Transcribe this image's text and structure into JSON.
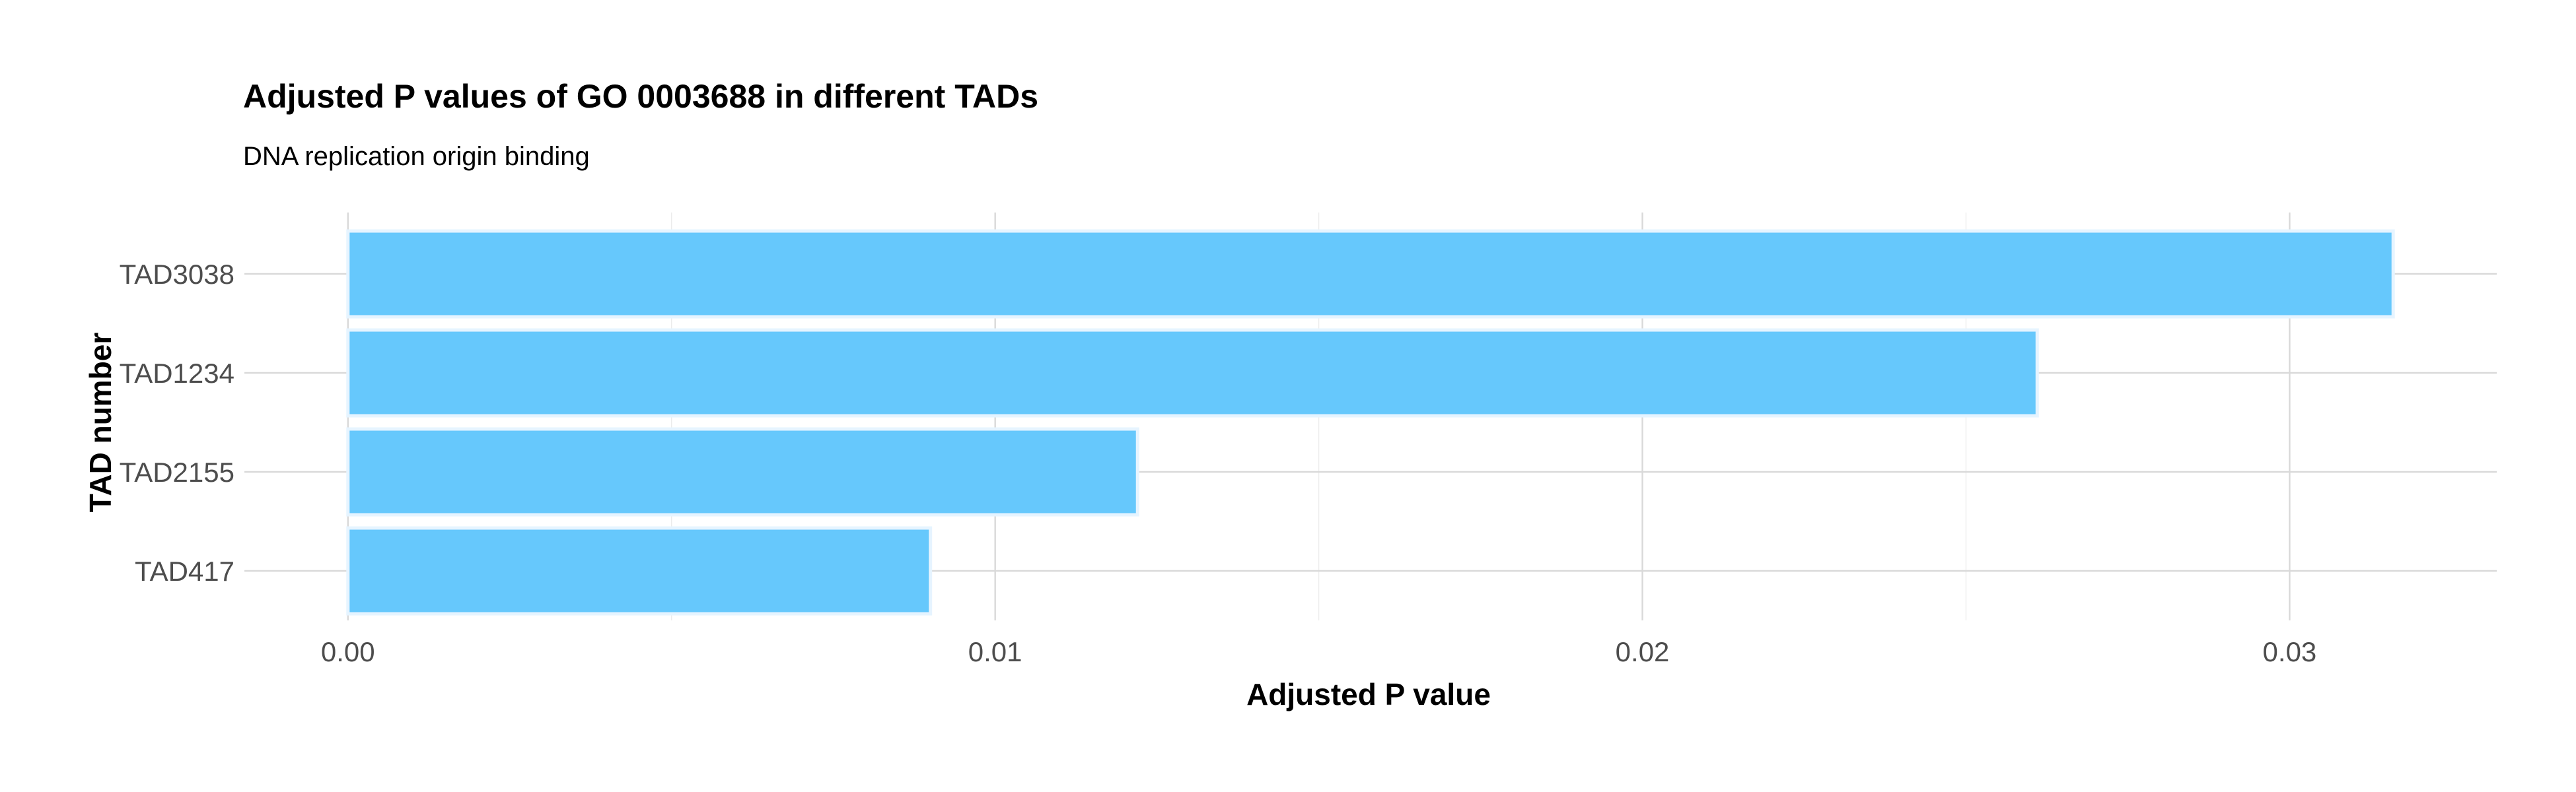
{
  "chart_data": {
    "type": "bar",
    "orientation": "horizontal",
    "title": "Adjusted P values of GO 0003688 in different TADs",
    "subtitle": "DNA replication origin binding",
    "xlabel": "Adjusted P value",
    "ylabel": "TAD number",
    "categories": [
      "TAD3038",
      "TAD1234",
      "TAD2155",
      "TAD417"
    ],
    "values": [
      0.0316,
      0.0261,
      0.0122,
      0.009
    ],
    "xlim": [
      -0.0016,
      0.0332
    ],
    "xticks": [
      0.0,
      0.01,
      0.02,
      0.03
    ],
    "xtick_labels": [
      "0.00",
      "0.01",
      "0.02",
      "0.03"
    ],
    "grid": true,
    "legend": "none",
    "colors": {
      "bar_fill": "#66c8fc",
      "bar_outline": "#e6f4ff",
      "grid": "#d9d9d9"
    }
  }
}
